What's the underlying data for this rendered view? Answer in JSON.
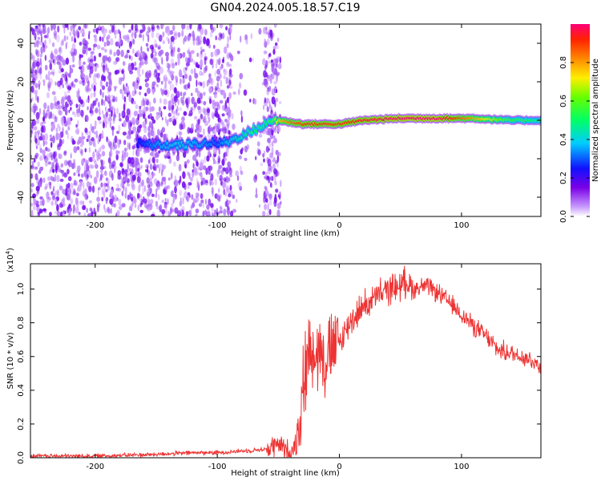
{
  "title": "GN04.2024.005.18.57.C19",
  "colors": {
    "snr_line": "#ee3333",
    "track_bg": "#cc99ff",
    "noise": "#7711ee"
  },
  "chart_data": [
    {
      "type": "heatmap",
      "xlabel": "Height of straight line (km)",
      "ylabel": "Frequency (Hz)",
      "xlim": [
        -253,
        165
      ],
      "ylim": [
        -50,
        50
      ],
      "xticks": [
        -200,
        -100,
        0,
        100
      ],
      "yticks": [
        -40,
        -20,
        0,
        20,
        40
      ],
      "grid": false,
      "colorbar": {
        "label": "Normalized spectral amplitude",
        "range": [
          0,
          1
        ],
        "ticks": [
          "0.0",
          "0.2",
          "0.4",
          "0.6",
          "0.8"
        ],
        "colormap": "rainbow"
      },
      "ridge": {
        "description_points_x": [
          -165,
          -150,
          -130,
          -110,
          -100,
          -90,
          -80,
          -70,
          -60,
          -55,
          -50,
          -40,
          -30,
          -20,
          0,
          20,
          50,
          80,
          110,
          140,
          165
        ],
        "frequency_hz": [
          -12,
          -13,
          -13,
          -12,
          -12,
          -11,
          -8,
          -5,
          -2,
          0,
          0,
          -1,
          -2,
          -2,
          -2,
          0,
          1,
          1,
          1,
          0,
          0
        ],
        "amplitude": [
          0.25,
          0.35,
          0.4,
          0.35,
          0.3,
          0.4,
          0.45,
          0.5,
          0.5,
          0.55,
          0.75,
          0.85,
          0.9,
          0.9,
          0.9,
          0.95,
          1.0,
          1.0,
          0.8,
          0.55,
          0.5
        ]
      }
    },
    {
      "type": "line",
      "xlabel": "Height of straight line (km)",
      "ylabel": "SNR (10 * v/v)",
      "ylabel_scale": "(x10",
      "ylabel_scale_exp": "4",
      "ylabel_scale_close": ")",
      "xlim": [
        -253,
        165
      ],
      "ylim": [
        0,
        1.15
      ],
      "xticks": [
        -200,
        -100,
        0,
        100
      ],
      "yticks": [
        "0.0",
        "0.2",
        "0.4",
        "0.6",
        "0.8",
        "1.0"
      ],
      "grid": false,
      "series": [
        {
          "x": [
            -253,
            -200,
            -150,
            -120,
            -100,
            -80,
            -60,
            -50,
            -45,
            -40,
            -35,
            -30,
            -25,
            -20,
            -10,
            0,
            10,
            20,
            30,
            40,
            50,
            55,
            60,
            70,
            80,
            90,
            100,
            110,
            120,
            130,
            140,
            150,
            160,
            165
          ],
          "y": [
            0.01,
            0.01,
            0.02,
            0.03,
            0.03,
            0.04,
            0.05,
            0.08,
            0.05,
            0.03,
            0.1,
            0.4,
            0.65,
            0.65,
            0.6,
            0.68,
            0.82,
            0.9,
            0.95,
            1.0,
            1.02,
            1.05,
            1.0,
            1.02,
            0.98,
            0.92,
            0.85,
            0.78,
            0.72,
            0.64,
            0.62,
            0.6,
            0.57,
            0.53
          ]
        }
      ]
    }
  ]
}
